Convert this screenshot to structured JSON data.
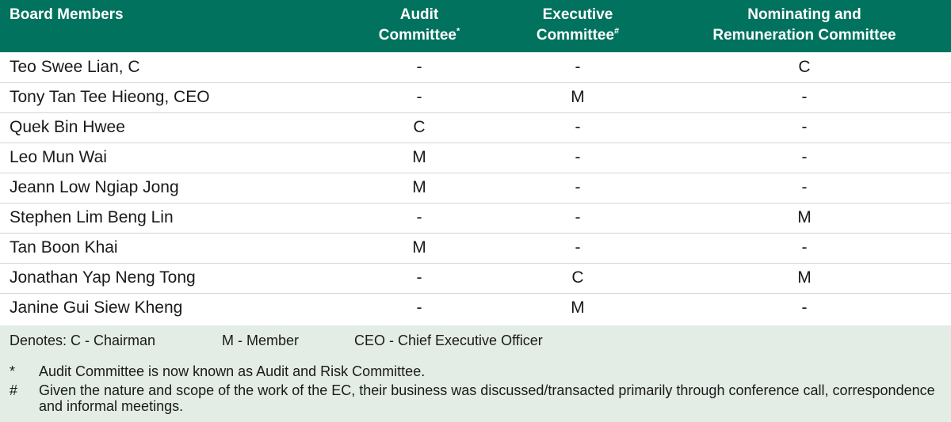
{
  "table": {
    "headers": [
      {
        "line1": "Board Members",
        "line2": "",
        "mark": ""
      },
      {
        "line1": "Audit",
        "line2": "Committee",
        "mark": "*"
      },
      {
        "line1": "Executive",
        "line2": "Committee",
        "mark": "#"
      },
      {
        "line1": "Nominating and",
        "line2": "Remuneration Committee",
        "mark": ""
      }
    ],
    "rows": [
      {
        "name": "Teo Swee Lian, C",
        "audit": "-",
        "executive": "-",
        "nrc": "C"
      },
      {
        "name": "Tony Tan Tee Hieong, CEO",
        "audit": "-",
        "executive": "M",
        "nrc": "-"
      },
      {
        "name": "Quek Bin Hwee",
        "audit": "C",
        "executive": "-",
        "nrc": "-"
      },
      {
        "name": "Leo Mun Wai",
        "audit": "M",
        "executive": "-",
        "nrc": "-"
      },
      {
        "name": "Jeann Low Ngiap Jong",
        "audit": "M",
        "executive": "-",
        "nrc": "-"
      },
      {
        "name": "Stephen Lim Beng Lin",
        "audit": "-",
        "executive": "-",
        "nrc": "M"
      },
      {
        "name": "Tan Boon Khai",
        "audit": "M",
        "executive": "-",
        "nrc": "-"
      },
      {
        "name": "Jonathan Yap Neng Tong",
        "audit": "-",
        "executive": "C",
        "nrc": "M"
      },
      {
        "name": "Janine Gui Siew Kheng",
        "audit": "-",
        "executive": "M",
        "nrc": "-"
      }
    ]
  },
  "legend": {
    "chairman": "Denotes: C - Chairman",
    "member": "M - Member",
    "ceo": "CEO - Chief Executive Officer"
  },
  "footnotes": [
    {
      "mark": "*",
      "text": "Audit Committee is now known as Audit and Risk Committee."
    },
    {
      "mark": "#",
      "text": "Given the nature and scope of the work of the EC, their business was discussed/transacted primarily through conference call, correspondence and informal meetings."
    }
  ],
  "colors": {
    "header_bg": "#00725e",
    "notes_bg": "#e3ece5"
  }
}
